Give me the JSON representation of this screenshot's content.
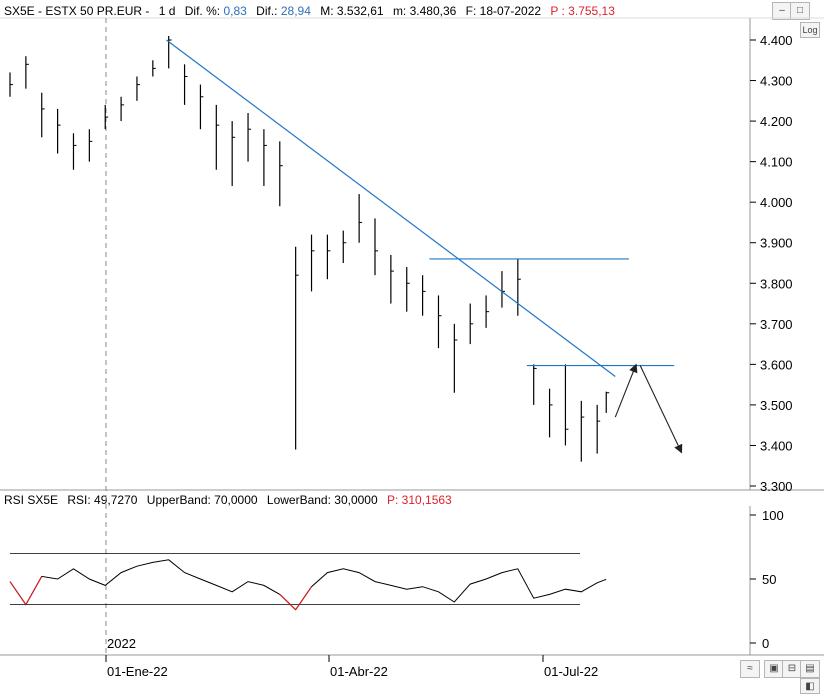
{
  "price_header": {
    "symbol": "SX5E - ESTX 50 PR.EUR -",
    "period": "1 d",
    "dif_pct_label": "Dif. %:",
    "dif_pct_value": "0,83",
    "dif_label": "Dif.:",
    "dif_value": "28,94",
    "max_label": "M: 3.532,61",
    "min_label": "m: 3.480,36",
    "date_label": "F: 18-07-2022",
    "cursor_label": "P : 3.755,13"
  },
  "rsi_header": {
    "name": "RSI SX5E",
    "rsi_label": "RSI: 49,7270",
    "upper_label": "UpperBand: 70,0000",
    "lower_label": "LowerBand: 30,0000",
    "cursor_label": "P: 310,1563"
  },
  "controls": {
    "log_label": "Log",
    "window_buttons": [
      "–",
      "□",
      "✕"
    ]
  },
  "x_axis": {
    "year_label": "2022",
    "ticks": [
      "01-Ene-22",
      "01-Abr-22",
      "01-Jul-22"
    ]
  },
  "colors": {
    "candle": "#000000",
    "trendline": "#1f77c8",
    "rsi_line": "#000000",
    "rsi_oversold": "#d62020",
    "grid": "#c8c8c8"
  },
  "chart_data": [
    {
      "type": "line",
      "subtype": "hlc-bars",
      "name": "SX5E - ESTX 50 PR.EUR",
      "yticks": [
        "4.400",
        "4.300",
        "4.200",
        "4.100",
        "4.000",
        "3.900",
        "3.800",
        "3.700",
        "3.600",
        "3.500",
        "3.400",
        "3.300"
      ],
      "ylim": [
        3290,
        4450
      ],
      "xlim": [
        "2021-10-28",
        "2022-09-15"
      ],
      "x": [
        "2021-10-28",
        "2021-11-04",
        "2021-11-11",
        "2021-11-18",
        "2021-11-25",
        "2021-12-02",
        "2021-12-09",
        "2021-12-16",
        "2021-12-23",
        "2021-12-30",
        "2022-01-06",
        "2022-01-13",
        "2022-01-20",
        "2022-01-27",
        "2022-02-03",
        "2022-02-10",
        "2022-02-17",
        "2022-02-24",
        "2022-03-03",
        "2022-03-10",
        "2022-03-17",
        "2022-03-24",
        "2022-03-31",
        "2022-04-07",
        "2022-04-14",
        "2022-04-21",
        "2022-04-28",
        "2022-05-05",
        "2022-05-12",
        "2022-05-19",
        "2022-05-26",
        "2022-06-02",
        "2022-06-09",
        "2022-06-16",
        "2022-06-23",
        "2022-06-30",
        "2022-07-07",
        "2022-07-14",
        "2022-07-18"
      ],
      "close": [
        4290,
        4340,
        4230,
        4190,
        4140,
        4150,
        4210,
        4240,
        4290,
        4330,
        4400,
        4310,
        4260,
        4190,
        4160,
        4180,
        4140,
        4090,
        3820,
        3880,
        3880,
        3900,
        3950,
        3880,
        3830,
        3800,
        3780,
        3720,
        3660,
        3700,
        3730,
        3780,
        3810,
        3590,
        3500,
        3440,
        3470,
        3460,
        3530
      ],
      "high": [
        4320,
        4360,
        4270,
        4230,
        4170,
        4180,
        4240,
        4260,
        4310,
        4350,
        4410,
        4340,
        4290,
        4240,
        4200,
        4220,
        4180,
        4150,
        3890,
        3920,
        3920,
        3930,
        4020,
        3960,
        3870,
        3840,
        3820,
        3770,
        3700,
        3750,
        3770,
        3830,
        3860,
        3600,
        3540,
        3600,
        3510,
        3500,
        3532.61
      ],
      "low": [
        4260,
        4280,
        4160,
        4120,
        4080,
        4100,
        4180,
        4200,
        4250,
        4310,
        4330,
        4240,
        4180,
        4080,
        4040,
        4100,
        4040,
        3990,
        3390,
        3780,
        3810,
        3850,
        3900,
        3820,
        3750,
        3730,
        3720,
        3640,
        3530,
        3650,
        3690,
        3740,
        3720,
        3500,
        3420,
        3400,
        3360,
        3380,
        3480.36
      ],
      "trendline": {
        "from": {
          "x": "2022-01-05",
          "y": 4400
        },
        "to": {
          "x": "2022-07-22",
          "y": 3570
        }
      },
      "resistance": {
        "from": {
          "x": "2022-05-01",
          "y": 3860
        },
        "to": {
          "x": "2022-07-28",
          "y": 3860
        }
      },
      "support": {
        "from": {
          "x": "2022-06-13",
          "y": 3597
        },
        "to": {
          "x": "2022-08-17",
          "y": 3597
        }
      },
      "projection": [
        {
          "from": {
            "x": "2022-07-22",
            "y": 3470
          },
          "to": {
            "x": "2022-07-31",
            "y": 3597
          }
        },
        {
          "from": {
            "x": "2022-08-02",
            "y": 3597
          },
          "to": {
            "x": "2022-08-20",
            "y": 3385
          }
        }
      ]
    },
    {
      "type": "line",
      "name": "RSI SX5E",
      "yticks": [
        "100",
        "50",
        "0"
      ],
      "ylim": [
        0,
        100
      ],
      "bands": [
        70,
        30
      ],
      "x": [
        "2021-10-28",
        "2021-11-04",
        "2021-11-11",
        "2021-11-18",
        "2021-11-25",
        "2021-12-02",
        "2021-12-09",
        "2021-12-16",
        "2021-12-23",
        "2021-12-30",
        "2022-01-06",
        "2022-01-13",
        "2022-01-20",
        "2022-01-27",
        "2022-02-03",
        "2022-02-10",
        "2022-02-17",
        "2022-02-24",
        "2022-03-03",
        "2022-03-10",
        "2022-03-17",
        "2022-03-24",
        "2022-03-31",
        "2022-04-07",
        "2022-04-14",
        "2022-04-21",
        "2022-04-28",
        "2022-05-05",
        "2022-05-12",
        "2022-05-19",
        "2022-05-26",
        "2022-06-02",
        "2022-06-09",
        "2022-06-16",
        "2022-06-23",
        "2022-06-30",
        "2022-07-07",
        "2022-07-14",
        "2022-07-18"
      ],
      "values": [
        48,
        30,
        52,
        50,
        58,
        50,
        45,
        55,
        60,
        63,
        65,
        55,
        50,
        45,
        40,
        48,
        45,
        38,
        26,
        44,
        55,
        58,
        55,
        48,
        45,
        42,
        44,
        40,
        32,
        46,
        50,
        55,
        58,
        35,
        38,
        42,
        40,
        47,
        49.73
      ]
    }
  ]
}
